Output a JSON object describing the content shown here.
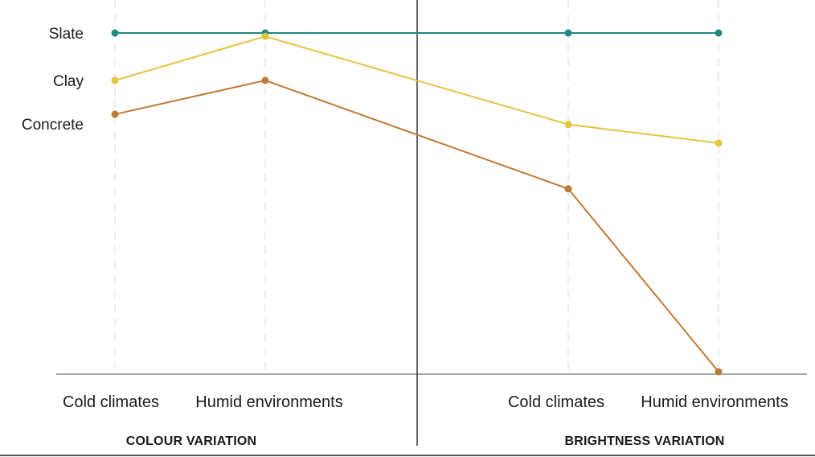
{
  "chart_data": {
    "type": "line",
    "categories": [
      "Cold climates",
      "Humid environments",
      "Cold climates",
      "Humid environments"
    ],
    "groups": [
      "COLOUR VARIATION",
      "BRIGHTNESS VARIATION"
    ],
    "series": [
      {
        "name": "Slate",
        "color": "#1f8a7e",
        "values": [
          100,
          100,
          100,
          100
        ]
      },
      {
        "name": "Clay",
        "color": "#e3c43f",
        "values": [
          86,
          99,
          73,
          67.5
        ]
      },
      {
        "name": "Concrete",
        "color": "#c07a35",
        "values": [
          76,
          86,
          54,
          0
        ]
      }
    ],
    "ylim": [
      0,
      100
    ],
    "grid": "vertical dashed",
    "legend": "left, at line start"
  }
}
